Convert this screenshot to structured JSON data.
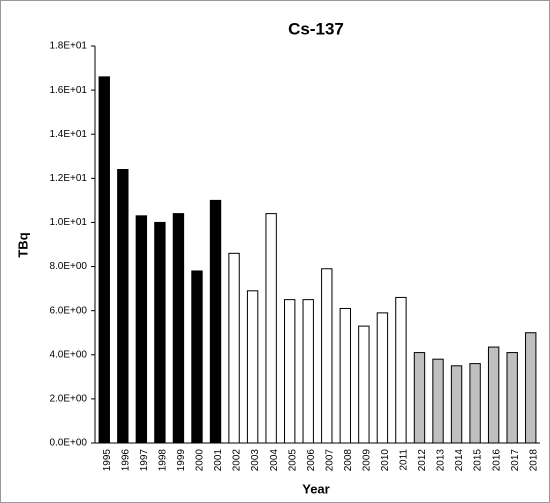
{
  "chart_data": {
    "type": "bar",
    "title": "Cs-137",
    "x_label": "Year",
    "y_label": "TBq",
    "categories": [
      "1995",
      "1996",
      "1997",
      "1998",
      "1999",
      "2000",
      "2001",
      "2002",
      "2003",
      "2004",
      "2005",
      "2006",
      "2007",
      "2008",
      "2009",
      "2010",
      "2011",
      "2012",
      "2013",
      "2014",
      "2015",
      "2016",
      "2017",
      "2018"
    ],
    "values": [
      16.6,
      12.4,
      10.3,
      10.0,
      10.4,
      7.8,
      11.0,
      8.6,
      6.9,
      10.4,
      6.5,
      6.5,
      7.9,
      6.1,
      5.3,
      5.9,
      6.6,
      4.1,
      3.8,
      3.5,
      3.6,
      4.35,
      4.1,
      5.0
    ],
    "colors": [
      "#000000",
      "#000000",
      "#000000",
      "#000000",
      "#000000",
      "#000000",
      "#000000",
      "#ffffff",
      "#ffffff",
      "#ffffff",
      "#ffffff",
      "#ffffff",
      "#ffffff",
      "#ffffff",
      "#ffffff",
      "#ffffff",
      "#ffffff",
      "#bfbfbf",
      "#bfbfbf",
      "#bfbfbf",
      "#bfbfbf",
      "#bfbfbf",
      "#bfbfbf",
      "#bfbfbf"
    ],
    "ylim": [
      0,
      18
    ],
    "yticks": [
      {
        "value": 0,
        "label": "0.0E+00"
      },
      {
        "value": 2,
        "label": "2.0E+00"
      },
      {
        "value": 4,
        "label": "4.0E+00"
      },
      {
        "value": 6,
        "label": "6.0E+00"
      },
      {
        "value": 8,
        "label": "8.0E+00"
      },
      {
        "value": 10,
        "label": "1.0E+01"
      },
      {
        "value": 12,
        "label": "1.2E+01"
      },
      {
        "value": 14,
        "label": "1.4E+01"
      },
      {
        "value": 16,
        "label": "1.6E+01"
      },
      {
        "value": 18,
        "label": "1.8E+01"
      }
    ],
    "grid": false
  }
}
